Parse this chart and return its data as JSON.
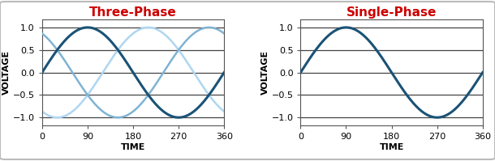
{
  "title_left": "Three-Phase",
  "title_right": "Single-Phase",
  "title_color": "#cc0000",
  "title_fontsize": 11,
  "xlabel": "TIME",
  "ylabel": "VOLTAGE",
  "xlim": [
    0,
    360
  ],
  "ylim": [
    -1.18,
    1.18
  ],
  "xticks": [
    0,
    90,
    180,
    270,
    360
  ],
  "yticks": [
    -1,
    -0.5,
    0,
    0.5,
    1
  ],
  "phase1_color": "#1a5276",
  "phase2_color": "#7fb3d3",
  "phase3_color": "#aed6f1",
  "phase1_lw": 2.2,
  "phase2_lw": 1.8,
  "phase3_lw": 1.8,
  "background_color": "#ffffff",
  "panel_bg": "#ffffff",
  "border_color": "#b0b0b0",
  "spine_color": "#555555",
  "tick_fontsize": 8,
  "label_fontsize": 8,
  "grid_color": "#444444",
  "grid_linewidth": 0.9,
  "outer_border_color": "#bbbbbb",
  "outer_border_lw": 1.5
}
